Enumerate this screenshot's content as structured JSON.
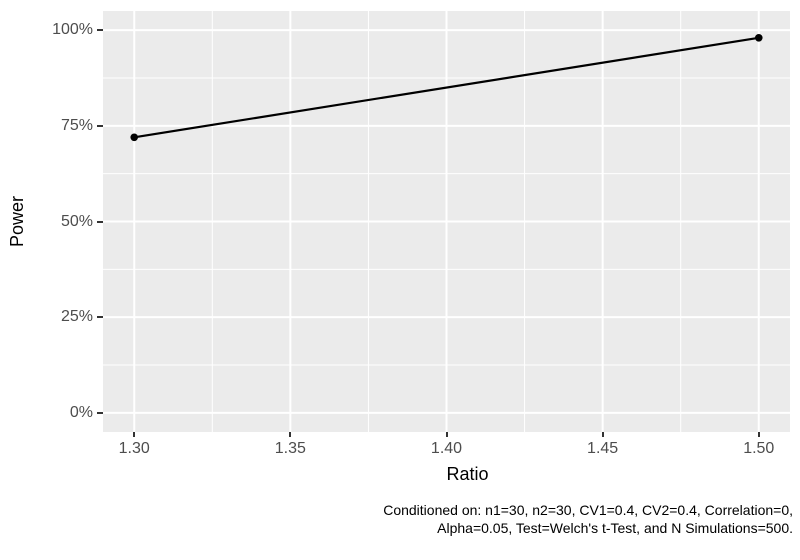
{
  "chart_data": {
    "type": "line",
    "title": "",
    "xlabel": "Ratio",
    "ylabel": "Power",
    "x": [
      1.3,
      1.5
    ],
    "series": [
      {
        "name": "Power",
        "values": [
          0.72,
          0.98
        ]
      }
    ],
    "xlim": [
      1.29,
      1.51
    ],
    "ylim": [
      -0.05,
      1.05
    ],
    "x_ticks": {
      "values": [
        1.3,
        1.35,
        1.4,
        1.45,
        1.5
      ],
      "labels": [
        "1.30",
        "1.35",
        "1.40",
        "1.45",
        "1.50"
      ]
    },
    "y_ticks": {
      "values": [
        0,
        0.25,
        0.5,
        0.75,
        1.0
      ],
      "labels": [
        "0%",
        "25%",
        "50%",
        "75%",
        "100%"
      ]
    },
    "grid": "major-and-minor",
    "legend": "none",
    "caption_lines": [
      "Conditioned on: n1=30, n2=30, CV1=0.4, CV2=0.4, Correlation=0,",
      "Alpha=0.05, Test=Welch's t-Test, and N Simulations=500."
    ]
  },
  "colors": {
    "figure_bg": "#FFFFFF",
    "panel_bg": "#EBEBEB",
    "grid_major": "#FFFFFF",
    "grid_minor": "#FFFFFF",
    "series_line": "#000000",
    "data_point": "#000000",
    "tick_mark": "#333333",
    "axis_text": "#4D4D4D",
    "axis_title": "#000000",
    "caption_text": "#000000"
  }
}
